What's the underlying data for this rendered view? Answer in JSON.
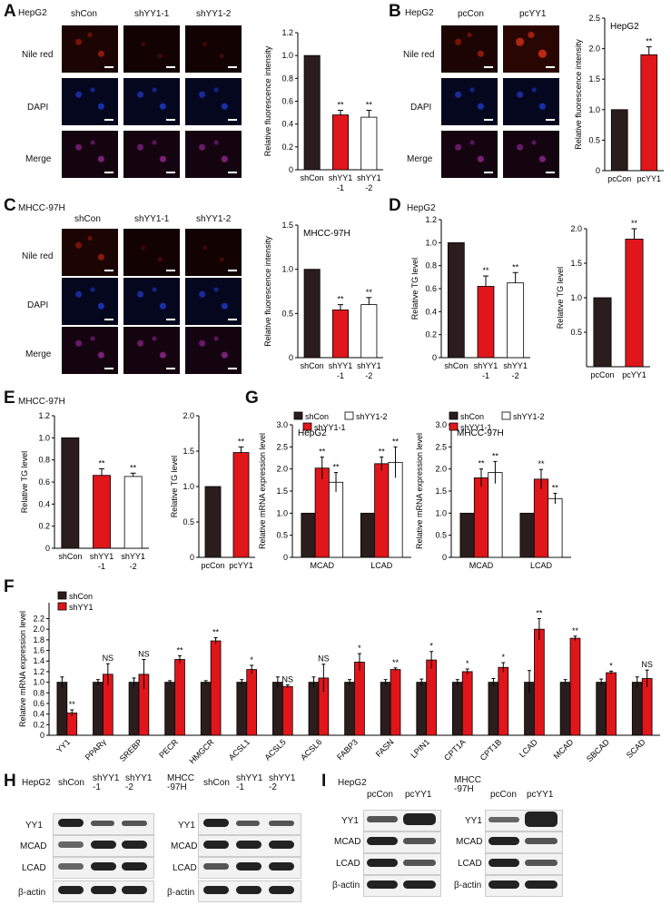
{
  "panels": {
    "A": {
      "letter": "A",
      "cell": "HepG2",
      "cols": [
        "shCon",
        "shYY1-1",
        "shYY1-2"
      ],
      "rows": [
        "Nile red",
        "DAPI",
        "Merge"
      ]
    },
    "B": {
      "letter": "B",
      "cell": "HepG2",
      "cols": [
        "pcCon",
        "pcYY1"
      ],
      "rows": [
        "Nile red",
        "DAPI",
        "Merge"
      ]
    },
    "C": {
      "letter": "C",
      "cell": "MHCC-97H",
      "cols": [
        "shCon",
        "shYY1-1",
        "shYY1-2"
      ],
      "rows": [
        "Nile red",
        "DAPI",
        "Merge"
      ]
    },
    "D": {
      "letter": "D",
      "cell": "HepG2"
    },
    "E": {
      "letter": "E",
      "cell": "MHCC-97H"
    },
    "F": {
      "letter": "F"
    },
    "G": {
      "letter": "G"
    },
    "H": {
      "letter": "H",
      "cell1": "HepG2",
      "cell2": "MHCC\n-97H",
      "cols": [
        "shCon",
        "shYY1\n-1",
        "shYY1\n-2"
      ],
      "rows": [
        "YY1",
        "MCAD",
        "LCAD",
        "β-actin"
      ]
    },
    "I": {
      "letter": "I",
      "cell1": "HepG2",
      "cell2": "MHCC\n-97H",
      "cols": [
        "pcCon",
        "pcYY1"
      ],
      "rows": [
        "YY1",
        "MCAD",
        "LCAD",
        "β-actin"
      ]
    }
  },
  "colors": {
    "con": "#2b1d1d",
    "red": "#e0161b",
    "white": "#ffffff"
  },
  "chart_data": [
    {
      "id": "A",
      "type": "bar",
      "title": "",
      "ylabel": "Relative fluorescence intensity",
      "ylim": [
        0,
        1.2
      ],
      "yticks": [
        0,
        0.2,
        0.4,
        0.6,
        0.8,
        1.0,
        1.2
      ],
      "categories": [
        "shCon",
        "shYY1\n-1",
        "shYY1\n-2"
      ],
      "values": [
        1.0,
        0.48,
        0.46
      ],
      "errors": [
        0,
        0.04,
        0.06
      ],
      "sig": [
        "",
        "**",
        "**"
      ],
      "fills": [
        "con",
        "red",
        "white"
      ]
    },
    {
      "id": "B",
      "type": "bar",
      "title": "HepG2",
      "ylabel": "Relative fluorescence intensity",
      "ylim": [
        0,
        2.5
      ],
      "yticks": [
        0,
        0.5,
        1.0,
        1.5,
        2.0,
        2.5
      ],
      "categories": [
        "pcCon",
        "pcYY1"
      ],
      "values": [
        1.0,
        1.9
      ],
      "errors": [
        0,
        0.13
      ],
      "sig": [
        "",
        "**"
      ],
      "fills": [
        "con",
        "red"
      ]
    },
    {
      "id": "C",
      "type": "bar",
      "title": "MHCC-97H",
      "ylabel": "Relative fluorescence intensity",
      "ylim": [
        0,
        1.5
      ],
      "yticks": [
        0,
        0.5,
        1.0,
        1.5
      ],
      "categories": [
        "shCon",
        "shYY1\n-1",
        "shYY1\n-2"
      ],
      "values": [
        1.0,
        0.54,
        0.6
      ],
      "errors": [
        0,
        0.06,
        0.08
      ],
      "sig": [
        "",
        "**",
        "**"
      ],
      "fills": [
        "con",
        "red",
        "white"
      ]
    },
    {
      "id": "D1",
      "type": "bar",
      "title": "",
      "ylabel": "Relative TG level",
      "ylim": [
        0,
        1.2
      ],
      "yticks": [
        0,
        0.2,
        0.4,
        0.6,
        0.8,
        1.0,
        1.2
      ],
      "categories": [
        "shCon",
        "shYY1\n-1",
        "shYY1\n-2"
      ],
      "values": [
        1.0,
        0.62,
        0.65
      ],
      "errors": [
        0,
        0.09,
        0.09
      ],
      "sig": [
        "",
        "**",
        "**"
      ],
      "fills": [
        "con",
        "red",
        "white"
      ]
    },
    {
      "id": "D2",
      "type": "bar",
      "title": "",
      "ylabel": "Relative TG level",
      "ylim": [
        0,
        2.0
      ],
      "yticks": [
        0.5,
        1.0,
        1.5,
        2.0
      ],
      "categories": [
        "pcCon",
        "pcYY1"
      ],
      "values": [
        1.0,
        1.85
      ],
      "errors": [
        0,
        0.15
      ],
      "sig": [
        "",
        "**"
      ],
      "fills": [
        "con",
        "red"
      ]
    },
    {
      "id": "E1",
      "type": "bar",
      "title": "",
      "ylabel": "Relative TG level",
      "ylim": [
        0,
        1.2
      ],
      "yticks": [
        0,
        0.2,
        0.4,
        0.6,
        0.8,
        1.0,
        1.2
      ],
      "categories": [
        "shCon",
        "shYY1\n-1",
        "shYY1\n-2"
      ],
      "values": [
        1.0,
        0.66,
        0.65
      ],
      "errors": [
        0,
        0.06,
        0.03
      ],
      "sig": [
        "",
        "**",
        "**"
      ],
      "fills": [
        "con",
        "red",
        "white"
      ]
    },
    {
      "id": "E2",
      "type": "bar",
      "title": "",
      "ylabel": "Relative TG level",
      "ylim": [
        0,
        2.0
      ],
      "yticks": [
        0,
        0.5,
        1.0,
        1.5,
        2.0
      ],
      "categories": [
        "pcCon",
        "pcYY1"
      ],
      "values": [
        1.0,
        1.48
      ],
      "errors": [
        0,
        0.08
      ],
      "sig": [
        "",
        "**"
      ],
      "fills": [
        "con",
        "red"
      ]
    },
    {
      "id": "G1",
      "type": "grouped-bar",
      "title": "HepG2",
      "ylabel": "Relative mRNA expression level",
      "ylim": [
        0,
        3.0
      ],
      "yticks": [
        0,
        0.5,
        1.0,
        1.5,
        2.0,
        2.5,
        3.0
      ],
      "categories": [
        "MCAD",
        "LCAD"
      ],
      "series": [
        {
          "name": "shCon",
          "fill": "con",
          "values": [
            1.0,
            1.0
          ],
          "errors": [
            0,
            0
          ]
        },
        {
          "name": "shYY1-1",
          "fill": "red",
          "values": [
            2.02,
            2.12
          ],
          "errors": [
            0.25,
            0.15
          ],
          "sig": [
            "**",
            "**"
          ]
        },
        {
          "name": "shYY1-2",
          "fill": "white",
          "values": [
            1.7,
            2.15
          ],
          "errors": [
            0.22,
            0.35
          ],
          "sig": [
            "**",
            "**"
          ]
        }
      ]
    },
    {
      "id": "G2",
      "type": "grouped-bar",
      "title": "MHCC-97H",
      "ylabel": "Relative mRNA expression level",
      "ylim": [
        0,
        3.0
      ],
      "yticks": [
        0,
        0.5,
        1.0,
        1.5,
        2.0,
        2.5,
        3.0
      ],
      "categories": [
        "MCAD",
        "LCAD"
      ],
      "series": [
        {
          "name": "shCon",
          "fill": "con",
          "values": [
            1.0,
            1.0
          ],
          "errors": [
            0,
            0
          ]
        },
        {
          "name": "shYY1-1",
          "fill": "red",
          "values": [
            1.8,
            1.77
          ],
          "errors": [
            0.2,
            0.22
          ],
          "sig": [
            "**",
            "**"
          ]
        },
        {
          "name": "shYY1-2",
          "fill": "white",
          "values": [
            1.92,
            1.33
          ],
          "errors": [
            0.25,
            0.12
          ],
          "sig": [
            "**",
            "**"
          ]
        }
      ]
    },
    {
      "id": "F",
      "type": "grouped-bar",
      "title": "",
      "ylabel": "Relative mRNA expression level",
      "ylim": [
        0,
        2.5
      ],
      "yticks": [
        0,
        0.2,
        0.4,
        0.6,
        0.8,
        1.0,
        1.2,
        1.4,
        1.6,
        1.8,
        2.0,
        2.2
      ],
      "categories": [
        "YY1",
        "PPARγ",
        "SREBP",
        "PECR",
        "HMGCR",
        "ACSL1",
        "ACSL5",
        "ACSL6",
        "FABP3",
        "FASN",
        "LPIN1",
        "CPT1A",
        "CPT1B",
        "LCAD",
        "MCAD",
        "SBCAD",
        "SCAD"
      ],
      "series": [
        {
          "name": "shCon",
          "fill": "con",
          "values": [
            1,
            1,
            1,
            1,
            1,
            1,
            1,
            1,
            1,
            1,
            1,
            1,
            1,
            1,
            1,
            1,
            1
          ],
          "errors": [
            0.1,
            0.05,
            0.08,
            0.03,
            0.03,
            0.05,
            0.1,
            0.1,
            0.05,
            0.05,
            0.06,
            0.05,
            0.07,
            0.22,
            0.05,
            0.06,
            0.1
          ]
        },
        {
          "name": "shYY1",
          "fill": "red",
          "values": [
            0.42,
            1.15,
            1.15,
            1.43,
            1.78,
            1.24,
            0.92,
            1.08,
            1.38,
            1.24,
            1.42,
            1.2,
            1.28,
            2.0,
            1.83,
            1.18,
            1.07
          ],
          "errors": [
            0.06,
            0.2,
            0.28,
            0.07,
            0.06,
            0.08,
            0.03,
            0.26,
            0.16,
            0.03,
            0.16,
            0.05,
            0.09,
            0.2,
            0.04,
            0.03,
            0.16
          ],
          "sig": [
            "**",
            "NS",
            "NS",
            "**",
            "**",
            "*",
            "NS",
            "NS",
            "*",
            "**",
            "*",
            "*",
            "*",
            "**",
            "**",
            "*",
            "NS"
          ]
        }
      ]
    }
  ]
}
